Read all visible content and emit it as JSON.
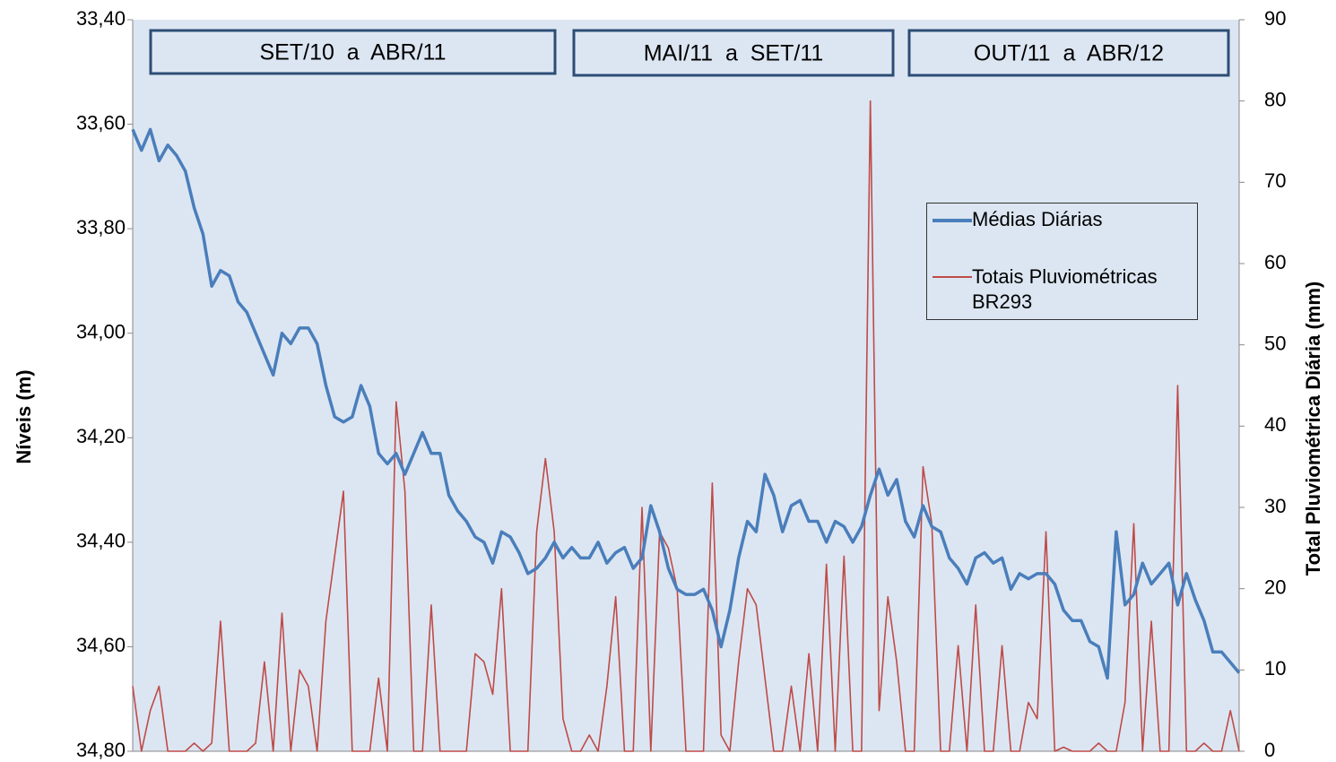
{
  "chart_data": {
    "type": "line",
    "y_label": "Níveis (m)",
    "y2_label": "Total Pluviométrica Diária (mm)",
    "annotations": [
      "SET/10  a  ABR/11",
      "MAI/11  a  SET/11",
      "OUT/11  a  ABR/12"
    ],
    "categories": [
      null,
      null,
      null,
      null,
      null,
      null,
      null,
      null,
      null,
      null,
      null,
      null,
      null,
      null,
      null,
      null,
      null,
      null,
      null,
      null,
      null,
      null,
      null,
      null,
      null,
      null,
      null,
      null,
      null,
      null,
      null,
      null,
      null,
      null,
      null,
      null,
      null,
      null,
      null,
      null,
      null,
      null,
      null,
      null,
      null,
      null,
      null,
      null,
      null,
      null,
      null,
      null,
      null,
      null,
      null,
      null,
      null,
      null,
      null,
      null,
      null,
      null,
      null,
      null,
      null,
      null,
      null,
      null,
      null,
      null,
      null,
      null,
      null,
      null,
      null,
      null,
      null,
      null,
      null,
      null,
      null,
      null,
      null,
      null,
      null,
      null,
      null,
      null,
      null,
      null,
      null,
      null,
      null,
      null,
      null,
      null,
      null,
      null,
      null,
      null,
      null,
      null,
      null,
      null,
      null,
      null,
      null,
      null,
      null,
      null,
      null,
      null,
      null,
      null,
      null,
      null,
      null,
      null,
      null,
      null,
      null,
      null,
      null,
      null,
      null,
      null,
      null
    ],
    "series": [
      {
        "name": "Médias Diárias",
        "color": "#4a7ebb",
        "axis": "y",
        "values": [
          33.61,
          33.65,
          33.61,
          33.67,
          33.64,
          33.66,
          33.69,
          33.76,
          33.81,
          33.91,
          33.88,
          33.89,
          33.94,
          33.96,
          34.0,
          34.04,
          34.08,
          34.0,
          34.02,
          33.99,
          33.99,
          34.02,
          34.1,
          34.16,
          34.17,
          34.16,
          34.1,
          34.14,
          34.23,
          34.25,
          34.23,
          34.27,
          34.23,
          34.19,
          34.23,
          34.23,
          34.31,
          34.34,
          34.36,
          34.39,
          34.4,
          34.44,
          34.38,
          34.39,
          34.42,
          34.46,
          34.45,
          34.43,
          34.4,
          34.43,
          34.41,
          34.43,
          34.43,
          34.4,
          34.44,
          34.42,
          34.41,
          34.45,
          34.43,
          34.33,
          34.38,
          34.45,
          34.49,
          34.5,
          34.5,
          34.49,
          34.53,
          34.6,
          34.53,
          34.43,
          34.36,
          34.38,
          34.27,
          34.31,
          34.38,
          34.33,
          34.32,
          34.36,
          34.36,
          34.4,
          34.36,
          34.37,
          34.4,
          34.37,
          34.31,
          34.26,
          34.31,
          34.28,
          34.36,
          34.39,
          34.33,
          34.37,
          34.38,
          34.43,
          34.45,
          34.48,
          34.43,
          34.42,
          34.44,
          34.43,
          34.49,
          34.46,
          34.47,
          34.46,
          34.46,
          34.48,
          34.53,
          34.55,
          34.55,
          34.59,
          34.6,
          34.66,
          34.38,
          34.52,
          34.5,
          34.44,
          34.48,
          34.46,
          34.44,
          34.52,
          34.46,
          34.51,
          34.55,
          34.61,
          34.61,
          34.63,
          34.65
        ]
      },
      {
        "name": "Totais Pluviométricas BR293",
        "color": "#be4b48",
        "axis": "y2",
        "values": [
          8,
          0,
          5,
          8,
          0,
          0,
          0,
          1,
          0,
          1,
          16,
          0,
          0,
          0,
          1,
          11,
          0,
          17,
          0,
          10,
          8,
          0,
          16,
          24,
          32,
          0,
          0,
          0,
          9,
          0,
          43,
          32,
          0,
          0,
          18,
          0,
          0,
          0,
          0,
          12,
          11,
          7,
          20,
          0,
          0,
          0,
          27,
          36,
          27,
          4,
          0,
          0,
          2,
          0,
          8,
          19,
          0,
          0,
          30,
          0,
          27,
          25,
          20,
          0,
          0,
          0,
          33,
          2,
          0,
          11,
          20,
          18,
          9,
          0,
          0,
          8,
          0,
          12,
          0,
          23,
          0,
          24,
          0,
          0,
          80,
          5,
          19,
          11,
          0,
          0,
          35,
          28,
          0,
          0,
          13,
          0,
          18,
          0,
          0,
          13,
          0,
          0,
          6,
          4,
          27,
          0,
          0.5,
          0,
          0,
          0,
          1,
          0,
          0,
          6,
          28,
          0,
          16,
          0,
          0,
          45,
          0,
          0,
          1,
          0,
          0,
          5,
          0
        ]
      }
    ],
    "ylim": [
      34.8,
      33.4
    ],
    "yticks": [
      {
        "value": 33.4,
        "label": "33,40"
      },
      {
        "value": 33.6,
        "label": "33,60"
      },
      {
        "value": 33.8,
        "label": "33,80"
      },
      {
        "value": 34.0,
        "label": "34,00"
      },
      {
        "value": 34.2,
        "label": "34,20"
      },
      {
        "value": 34.4,
        "label": "34,40"
      },
      {
        "value": 34.6,
        "label": "34,60"
      },
      {
        "value": 34.8,
        "label": "34,80"
      }
    ],
    "y2lim": [
      0,
      90
    ],
    "y2ticks": [
      0,
      10,
      20,
      30,
      40,
      50,
      60,
      70,
      80,
      90
    ],
    "legend": "right"
  }
}
